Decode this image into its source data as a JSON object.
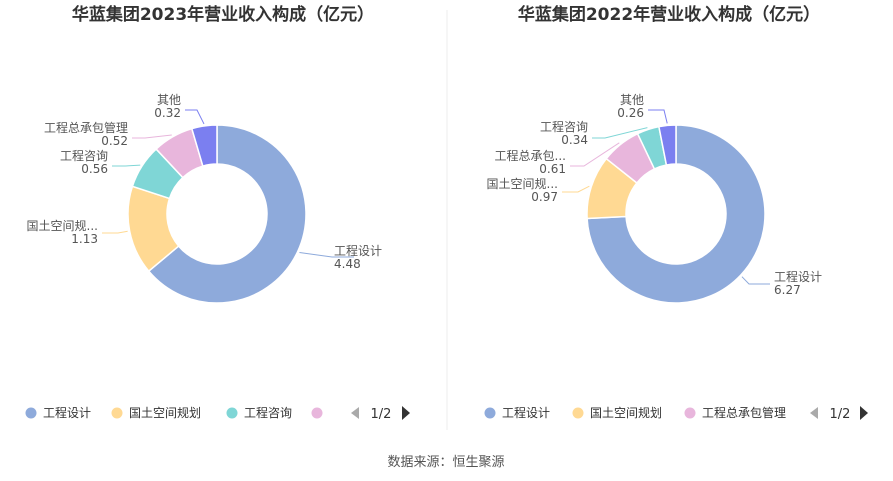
{
  "source": "数据来源：恒生聚源",
  "colors": {
    "工程设计": "#8eaadb",
    "国土空间规划": "#ffd993",
    "工程咨询": "#7fd6d6",
    "工程总承包管理": "#e8b6dc",
    "其他": "#7b7ff0"
  },
  "charts": [
    {
      "pager": "1/2",
      "legend": [
        {
          "name": "工程设计",
          "text": "工程设计"
        },
        {
          "name": "国土空间规划",
          "text": "国土空间规划"
        },
        {
          "name": "工程咨询",
          "text": "工程咨询"
        },
        {
          "name": "工程总承包管理",
          "text": ""
        }
      ]
    },
    {
      "pager": "1/2",
      "legend": [
        {
          "name": "工程设计",
          "text": "工程设计"
        },
        {
          "name": "国土空间规划",
          "text": "国土空间规划"
        },
        {
          "name": "工程总承包管理",
          "text": "工程总承包管理"
        }
      ]
    }
  ],
  "chart_data": [
    {
      "type": "pie",
      "title": "华蓝集团2023年营业收入构成（亿元）",
      "slices": [
        {
          "name": "工程设计",
          "label": "工程设计",
          "value": 4.48,
          "value_label": "4.48"
        },
        {
          "name": "国土空间规划",
          "label": "国土空间规...",
          "value": 1.13,
          "value_label": "1.13"
        },
        {
          "name": "工程咨询",
          "label": "工程咨询",
          "value": 0.56,
          "value_label": "0.56"
        },
        {
          "name": "工程总承包管理",
          "label": "工程总承包管理",
          "value": 0.52,
          "value_label": "0.52"
        },
        {
          "name": "其他",
          "label": "其他",
          "value": 0.32,
          "value_label": "0.32"
        }
      ]
    },
    {
      "type": "pie",
      "title": "华蓝集团2022年营业收入构成（亿元）",
      "slices": [
        {
          "name": "工程设计",
          "label": "工程设计",
          "value": 6.27,
          "value_label": "6.27"
        },
        {
          "name": "国土空间规划",
          "label": "国土空间规...",
          "value": 0.97,
          "value_label": "0.97"
        },
        {
          "name": "工程总承包管理",
          "label": "工程总承包...",
          "value": 0.61,
          "value_label": "0.61"
        },
        {
          "name": "工程咨询",
          "label": "工程咨询",
          "value": 0.34,
          "value_label": "0.34"
        },
        {
          "name": "其他",
          "label": "其他",
          "value": 0.26,
          "value_label": "0.26"
        }
      ]
    }
  ]
}
